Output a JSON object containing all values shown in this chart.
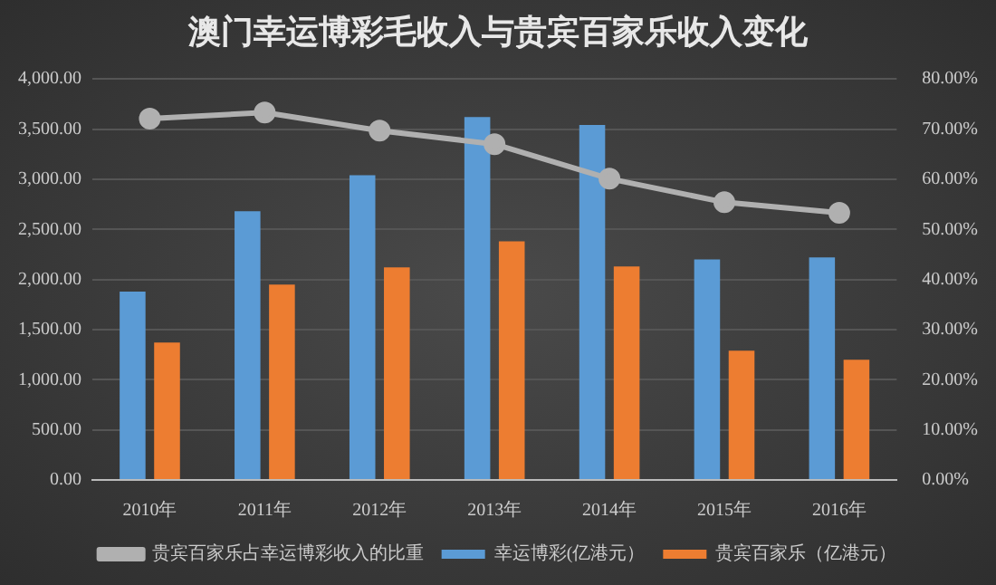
{
  "chart_data": {
    "type": "bar",
    "title": "澳门幸运博彩毛收入与贵宾百家乐收入变化",
    "categories": [
      "2010年",
      "2011年",
      "2012年",
      "2013年",
      "2014年",
      "2015年",
      "2016年"
    ],
    "series": [
      {
        "name": "幸运博彩(亿港元）",
        "color": "#5b9bd5",
        "values": [
          1880,
          2680,
          3040,
          3620,
          3540,
          2200,
          2220
        ]
      },
      {
        "name": "贵宾百家乐（亿港元）",
        "color": "#ed7d31",
        "values": [
          1370,
          1950,
          2120,
          2380,
          2130,
          1290,
          1200
        ]
      },
      {
        "name": "贵宾百家乐占幸运博彩收入的比重",
        "type": "line",
        "axis": "y2",
        "color": "#b0b0b0",
        "marker": "circle",
        "values": [
          72.1,
          73.3,
          69.7,
          67,
          60.1,
          55.4,
          53.3
        ]
      }
    ],
    "ylim": [
      0,
      4000
    ],
    "yticks": [
      {
        "value": 0,
        "label": "0.00"
      },
      {
        "value": 500,
        "label": "500.00"
      },
      {
        "value": 1000,
        "label": "1,000.00"
      },
      {
        "value": 1500,
        "label": "1,500.00"
      },
      {
        "value": 2000,
        "label": "2,000.00"
      },
      {
        "value": 2500,
        "label": "2,500.00"
      },
      {
        "value": 3000,
        "label": "3,000.00"
      },
      {
        "value": 3500,
        "label": "3,500.00"
      },
      {
        "value": 4000,
        "label": "4,000.00"
      }
    ],
    "y2lim": [
      0,
      80
    ],
    "y2ticks": [
      {
        "value": 0,
        "label": "0.00%"
      },
      {
        "value": 10,
        "label": "10.00%"
      },
      {
        "value": 20,
        "label": "20.00%"
      },
      {
        "value": 30,
        "label": "30.00%"
      },
      {
        "value": 40,
        "label": "40.00%"
      },
      {
        "value": 50,
        "label": "50.00%"
      },
      {
        "value": 60,
        "label": "60.00%"
      },
      {
        "value": 70,
        "label": "70.00%"
      },
      {
        "value": 80,
        "label": "80.00%"
      }
    ],
    "grid": "y",
    "legend": "bottom"
  }
}
